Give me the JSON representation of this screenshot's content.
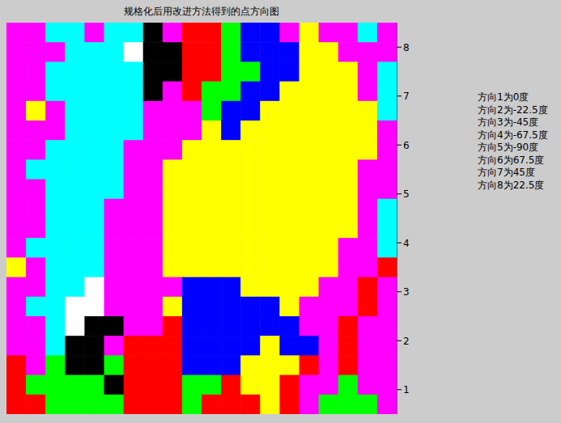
{
  "chart_data": {
    "type": "heatmap",
    "title": "规格化后用改进方法得到的点方向图",
    "xlim": [
      0,
      20
    ],
    "ylim": [
      0,
      20
    ],
    "tick_labels": false,
    "cells": [
      [
        5,
        5,
        6,
        6,
        5,
        6,
        6,
        8,
        5,
        1,
        1,
        2,
        3,
        3,
        5,
        4,
        5,
        5,
        6,
        5
      ],
      [
        5,
        5,
        5,
        6,
        6,
        6,
        7,
        8,
        8,
        1,
        1,
        2,
        3,
        3,
        3,
        4,
        4,
        5,
        5,
        5
      ],
      [
        5,
        5,
        6,
        6,
        6,
        6,
        6,
        8,
        8,
        1,
        1,
        2,
        2,
        3,
        3,
        4,
        4,
        4,
        5,
        6
      ],
      [
        5,
        5,
        6,
        6,
        6,
        6,
        6,
        8,
        5,
        1,
        2,
        2,
        3,
        3,
        4,
        4,
        4,
        4,
        5,
        6
      ],
      [
        5,
        4,
        5,
        6,
        6,
        6,
        6,
        5,
        5,
        5,
        2,
        3,
        3,
        4,
        4,
        4,
        4,
        4,
        4,
        6
      ],
      [
        5,
        5,
        5,
        6,
        6,
        6,
        6,
        5,
        5,
        5,
        4,
        3,
        4,
        4,
        4,
        4,
        4,
        4,
        4,
        5
      ],
      [
        5,
        5,
        6,
        6,
        6,
        6,
        5,
        5,
        5,
        4,
        4,
        4,
        4,
        4,
        4,
        4,
        4,
        4,
        4,
        5
      ],
      [
        5,
        6,
        6,
        6,
        6,
        6,
        5,
        5,
        4,
        4,
        4,
        4,
        4,
        4,
        4,
        4,
        4,
        4,
        5,
        5
      ],
      [
        5,
        5,
        6,
        6,
        6,
        6,
        5,
        5,
        4,
        4,
        4,
        4,
        4,
        4,
        4,
        4,
        4,
        4,
        5,
        5
      ],
      [
        5,
        5,
        6,
        6,
        6,
        5,
        5,
        5,
        4,
        4,
        4,
        4,
        4,
        4,
        4,
        4,
        4,
        4,
        5,
        6
      ],
      [
        5,
        5,
        6,
        6,
        6,
        5,
        5,
        5,
        4,
        4,
        4,
        4,
        4,
        4,
        4,
        4,
        4,
        4,
        5,
        6
      ],
      [
        5,
        6,
        6,
        6,
        6,
        5,
        5,
        5,
        4,
        4,
        4,
        4,
        4,
        4,
        4,
        4,
        4,
        5,
        5,
        6
      ],
      [
        4,
        5,
        6,
        6,
        6,
        5,
        5,
        5,
        4,
        4,
        4,
        4,
        4,
        4,
        4,
        4,
        4,
        5,
        5,
        1
      ],
      [
        5,
        5,
        6,
        6,
        7,
        5,
        5,
        5,
        5,
        3,
        3,
        3,
        4,
        4,
        4,
        4,
        5,
        5,
        1,
        5
      ],
      [
        5,
        6,
        6,
        7,
        7,
        5,
        5,
        5,
        4,
        3,
        3,
        3,
        3,
        3,
        4,
        5,
        5,
        5,
        1,
        5
      ],
      [
        5,
        5,
        6,
        7,
        8,
        8,
        5,
        5,
        1,
        3,
        3,
        3,
        3,
        3,
        3,
        5,
        5,
        1,
        5,
        5
      ],
      [
        5,
        5,
        6,
        8,
        8,
        5,
        1,
        1,
        1,
        3,
        3,
        3,
        3,
        4,
        3,
        3,
        5,
        1,
        5,
        5
      ],
      [
        1,
        5,
        2,
        8,
        8,
        2,
        1,
        1,
        1,
        3,
        3,
        3,
        4,
        4,
        4,
        1,
        5,
        1,
        5,
        5
      ],
      [
        1,
        2,
        2,
        2,
        2,
        8,
        1,
        1,
        1,
        2,
        2,
        1,
        4,
        4,
        1,
        5,
        5,
        2,
        5,
        5
      ],
      [
        1,
        1,
        2,
        2,
        2,
        2,
        1,
        1,
        1,
        2,
        1,
        1,
        1,
        4,
        1,
        5,
        2,
        2,
        2,
        5
      ]
    ],
    "colorbar": {
      "range": [
        0.5,
        8.5
      ],
      "ticks": [
        1,
        2,
        3,
        4,
        5,
        6,
        7,
        8
      ],
      "colors": [
        "#ff0000",
        "#00ff00",
        "#0000ff",
        "#ffff00",
        "#ff00ff",
        "#00ffff",
        "#ffffff",
        "#000000"
      ]
    },
    "annotations": [
      "方向1为0度",
      "方向2为-22.5度",
      "方向3为-45度",
      "方向4为-67.5度",
      "方向5为-90度",
      "方向6为67.5度",
      "方向7为45度",
      "方向8为22.5度"
    ]
  }
}
